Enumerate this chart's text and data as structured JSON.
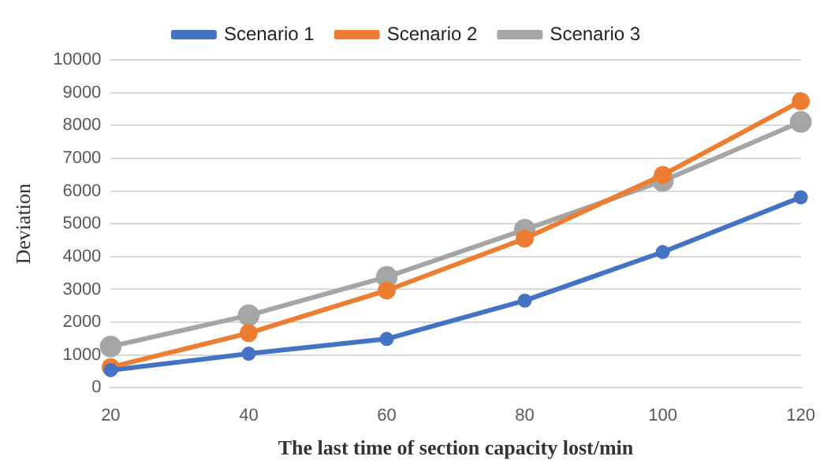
{
  "chart_data": {
    "type": "line",
    "xlabel": "The last time of section capacity lost/min",
    "ylabel": "Deviation",
    "categories": [
      "20",
      "40",
      "60",
      "80",
      "100",
      "120"
    ],
    "series": [
      {
        "name": "Scenario 1",
        "color": "#4472c4",
        "values": [
          540,
          1040,
          1490,
          2660,
          4140,
          5810
        ]
      },
      {
        "name": "Scenario 2",
        "color": "#ed7d31",
        "values": [
          630,
          1670,
          2970,
          4550,
          6490,
          8740
        ]
      },
      {
        "name": "Scenario 3",
        "color": "#a5a5a5",
        "values": [
          1260,
          2210,
          3380,
          4820,
          6310,
          8110
        ]
      }
    ],
    "ylim": [
      0,
      10000
    ],
    "yticks": [
      0,
      1000,
      2000,
      3000,
      4000,
      5000,
      6000,
      7000,
      8000,
      9000,
      10000
    ],
    "grid": "y",
    "legend": "top",
    "marker": "circle",
    "line_style": "solid"
  }
}
